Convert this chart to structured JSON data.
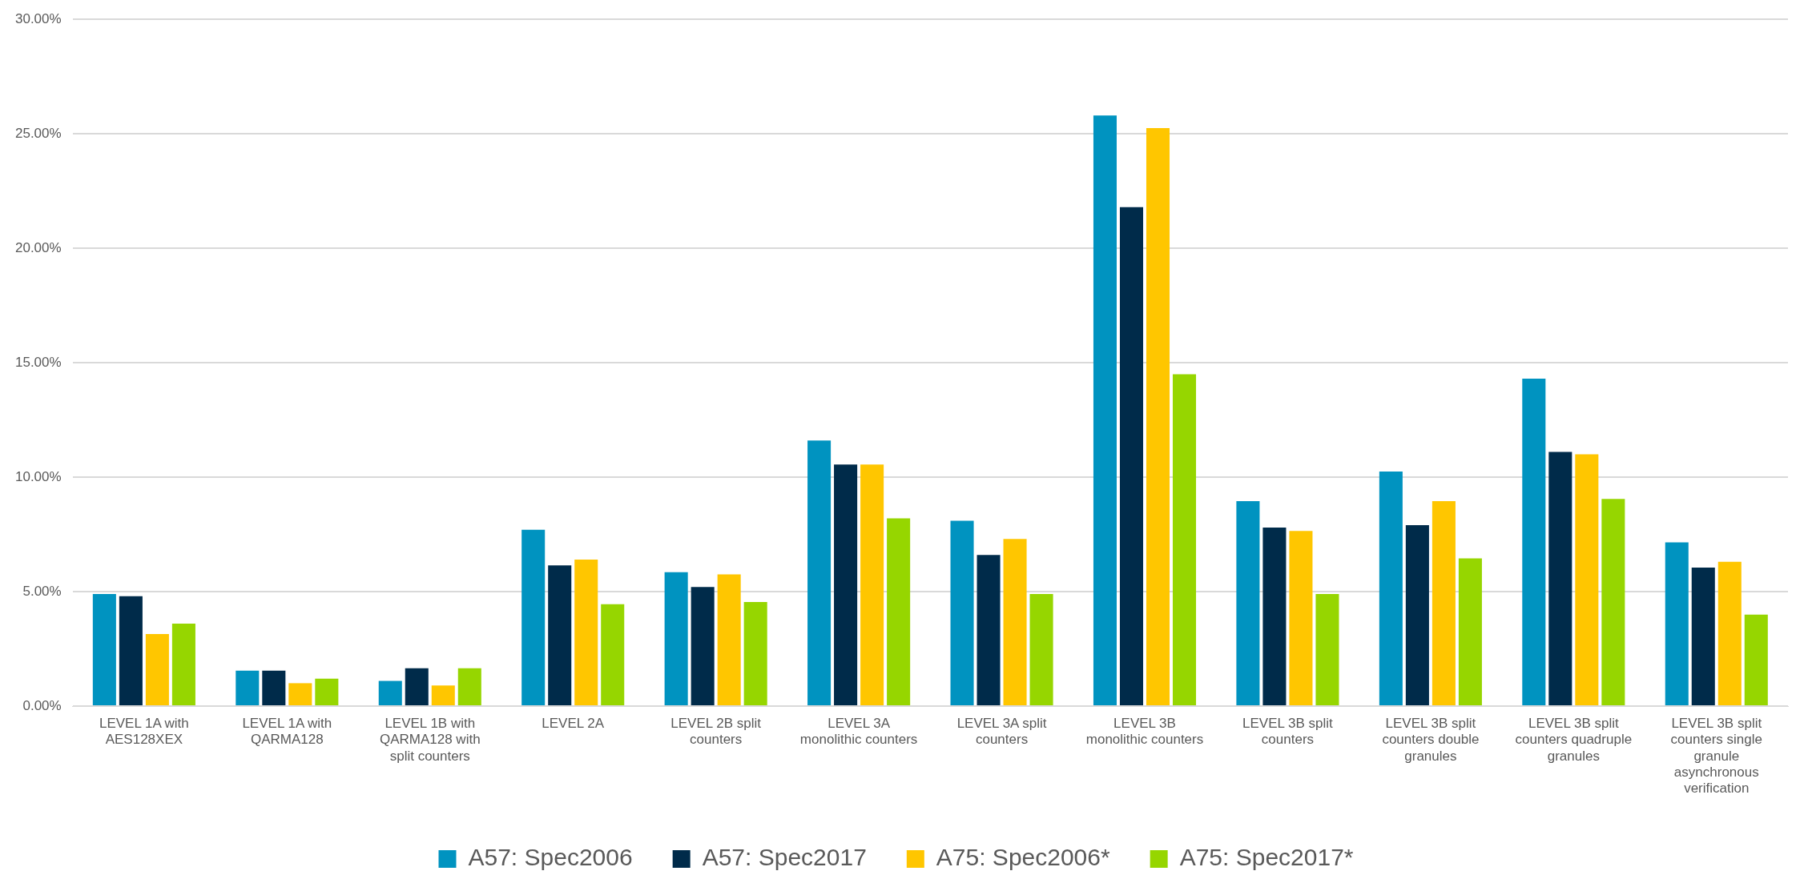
{
  "chart_data": {
    "type": "bar",
    "categories": [
      "LEVEL 1A with AES128XEX",
      "LEVEL 1A with QARMA128",
      "LEVEL 1B with QARMA128 with split counters",
      "LEVEL 2A",
      "LEVEL 2B split counters",
      "LEVEL 3A monolithic counters",
      "LEVEL 3A split counters",
      "LEVEL 3B monolithic counters",
      "LEVEL 3B split counters",
      "LEVEL 3B split counters double granules",
      "LEVEL 3B split counters quadruple granules",
      "LEVEL 3B split counters single granule asynchronous verification"
    ],
    "series": [
      {
        "name": "A57: Spec2006",
        "color": "#0093c0",
        "values": [
          4.9,
          1.55,
          1.1,
          7.7,
          5.85,
          11.6,
          8.1,
          25.8,
          8.95,
          10.25,
          14.3,
          7.15
        ]
      },
      {
        "name": "A57: Spec2017",
        "color": "#002b4a",
        "values": [
          4.8,
          1.55,
          1.65,
          6.15,
          5.2,
          10.55,
          6.6,
          21.8,
          7.8,
          7.9,
          11.1,
          6.05
        ]
      },
      {
        "name": "A75: Spec2006*",
        "color": "#ffc600",
        "values": [
          3.15,
          1.0,
          0.9,
          6.4,
          5.75,
          10.55,
          7.3,
          25.25,
          7.65,
          8.95,
          11.0,
          6.3
        ]
      },
      {
        "name": "A75: Spec2017*",
        "color": "#96d600",
        "values": [
          3.6,
          1.2,
          1.65,
          4.45,
          4.55,
          8.2,
          4.9,
          14.5,
          4.9,
          6.45,
          9.05,
          4.0
        ]
      }
    ],
    "ylim": [
      0,
      30
    ],
    "yticks": [
      {
        "value": 0,
        "label": "0.00%"
      },
      {
        "value": 5,
        "label": "5.00%"
      },
      {
        "value": 10,
        "label": "10.00%"
      },
      {
        "value": 15,
        "label": "15.00%"
      },
      {
        "value": 20,
        "label": "20.00%"
      },
      {
        "value": 25,
        "label": "25.00%"
      },
      {
        "value": 30,
        "label": "30.00%"
      }
    ],
    "grid": "y",
    "legend": "bottom"
  }
}
